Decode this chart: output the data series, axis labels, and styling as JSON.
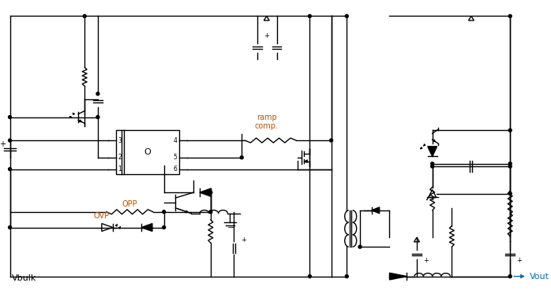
{
  "bg_color": "#ffffff",
  "line_color": "#000000",
  "blue": "#0070c0",
  "orange": "#c05000",
  "vbulk": "Vbulk",
  "vout": "Vout",
  "ovp": "OVP",
  "opp": "OPP",
  "ramp": "ramp\ncomp.",
  "figsize": [
    6.98,
    3.73
  ],
  "dpi": 100,
  "lw": 1.0
}
